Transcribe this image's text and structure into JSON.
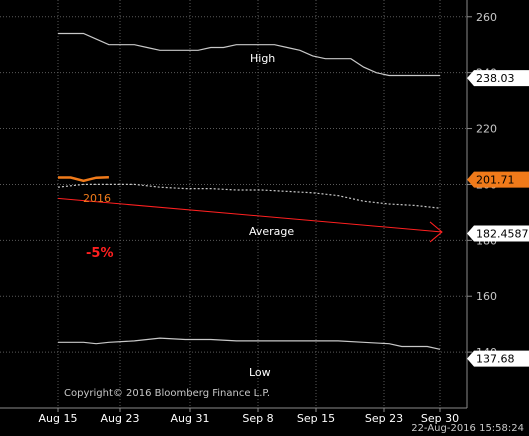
{
  "chart_data": {
    "type": "line",
    "title": "",
    "xlabel": "",
    "ylabel": "",
    "ylim": [
      120,
      266
    ],
    "x_ticks": [
      "Aug 15",
      "Aug 23",
      "Aug 31",
      "Sep 8",
      "Sep 15",
      "Sep 23",
      "Sep 30"
    ],
    "y_ticks": [
      260,
      240,
      220,
      200,
      180,
      160,
      140
    ],
    "series": [
      {
        "name": "High",
        "color": "#c8c8c8",
        "style": "solid",
        "points": [
          [
            0,
            254
          ],
          [
            1,
            254
          ],
          [
            2,
            254
          ],
          [
            3,
            252
          ],
          [
            4,
            250
          ],
          [
            5,
            250
          ],
          [
            6,
            250
          ],
          [
            7,
            249
          ],
          [
            8,
            248
          ],
          [
            9,
            248
          ],
          [
            10,
            248
          ],
          [
            11,
            248
          ],
          [
            12,
            249
          ],
          [
            13,
            249
          ],
          [
            14,
            250
          ],
          [
            15,
            250
          ],
          [
            16,
            250
          ],
          [
            17,
            250
          ],
          [
            18,
            249
          ],
          [
            19,
            248
          ],
          [
            20,
            246
          ],
          [
            21,
            245
          ],
          [
            22,
            245
          ],
          [
            23,
            245
          ],
          [
            24,
            242
          ],
          [
            25,
            240
          ],
          [
            26,
            239
          ],
          [
            27,
            239
          ],
          [
            28,
            239
          ],
          [
            29,
            239
          ],
          [
            30,
            239
          ]
        ]
      },
      {
        "name": "2016",
        "color": "#f07a1a",
        "style": "solid",
        "points": [
          [
            0,
            202.5
          ],
          [
            1,
            202.5
          ],
          [
            2,
            201.3
          ],
          [
            3,
            202.4
          ],
          [
            4,
            202.6
          ]
        ]
      },
      {
        "name": "Average",
        "color": "#c8c8c8",
        "style": "dotted",
        "points": [
          [
            0,
            199
          ],
          [
            2,
            200
          ],
          [
            4,
            200
          ],
          [
            6,
            200
          ],
          [
            8,
            199
          ],
          [
            10,
            198.5
          ],
          [
            12,
            198.5
          ],
          [
            14,
            198
          ],
          [
            16,
            198
          ],
          [
            18,
            197.5
          ],
          [
            20,
            197
          ],
          [
            22,
            196
          ],
          [
            24,
            194
          ],
          [
            26,
            193
          ],
          [
            28,
            192.5
          ],
          [
            30,
            191.5
          ]
        ]
      },
      {
        "name": "Low",
        "color": "#c8c8c8",
        "style": "solid",
        "points": [
          [
            0,
            143.5
          ],
          [
            2,
            143.5
          ],
          [
            3,
            143
          ],
          [
            4,
            143.5
          ],
          [
            6,
            144
          ],
          [
            8,
            145
          ],
          [
            10,
            144.5
          ],
          [
            12,
            144.5
          ],
          [
            14,
            144
          ],
          [
            16,
            144
          ],
          [
            18,
            144
          ],
          [
            20,
            144
          ],
          [
            22,
            144
          ],
          [
            24,
            143.5
          ],
          [
            26,
            143
          ],
          [
            27,
            142
          ],
          [
            28,
            142
          ],
          [
            29,
            142
          ],
          [
            30,
            141
          ]
        ]
      }
    ],
    "series_labels": {
      "high": "High",
      "year": "2016",
      "average": "Average",
      "low": "Low"
    },
    "last_values": [
      {
        "value": "238.03",
        "number": 238.03,
        "style": "plain"
      },
      {
        "value": "201.71",
        "number": 201.71,
        "style": "orange"
      },
      {
        "value": "182.4587",
        "number": 182.4587,
        "style": "plain"
      },
      {
        "value": "137.68",
        "number": 137.68,
        "style": "plain"
      }
    ],
    "trend_arrow": {
      "label": "-5%",
      "color": "#ff2020",
      "from": [
        0,
        195
      ],
      "to": [
        30,
        183
      ]
    },
    "grid": true,
    "background": "#000000"
  },
  "footer": {
    "copyright": "Copyright© 2016 Bloomberg Finance L.P.",
    "timestamp": "22-Aug-2016 15:58:24"
  }
}
